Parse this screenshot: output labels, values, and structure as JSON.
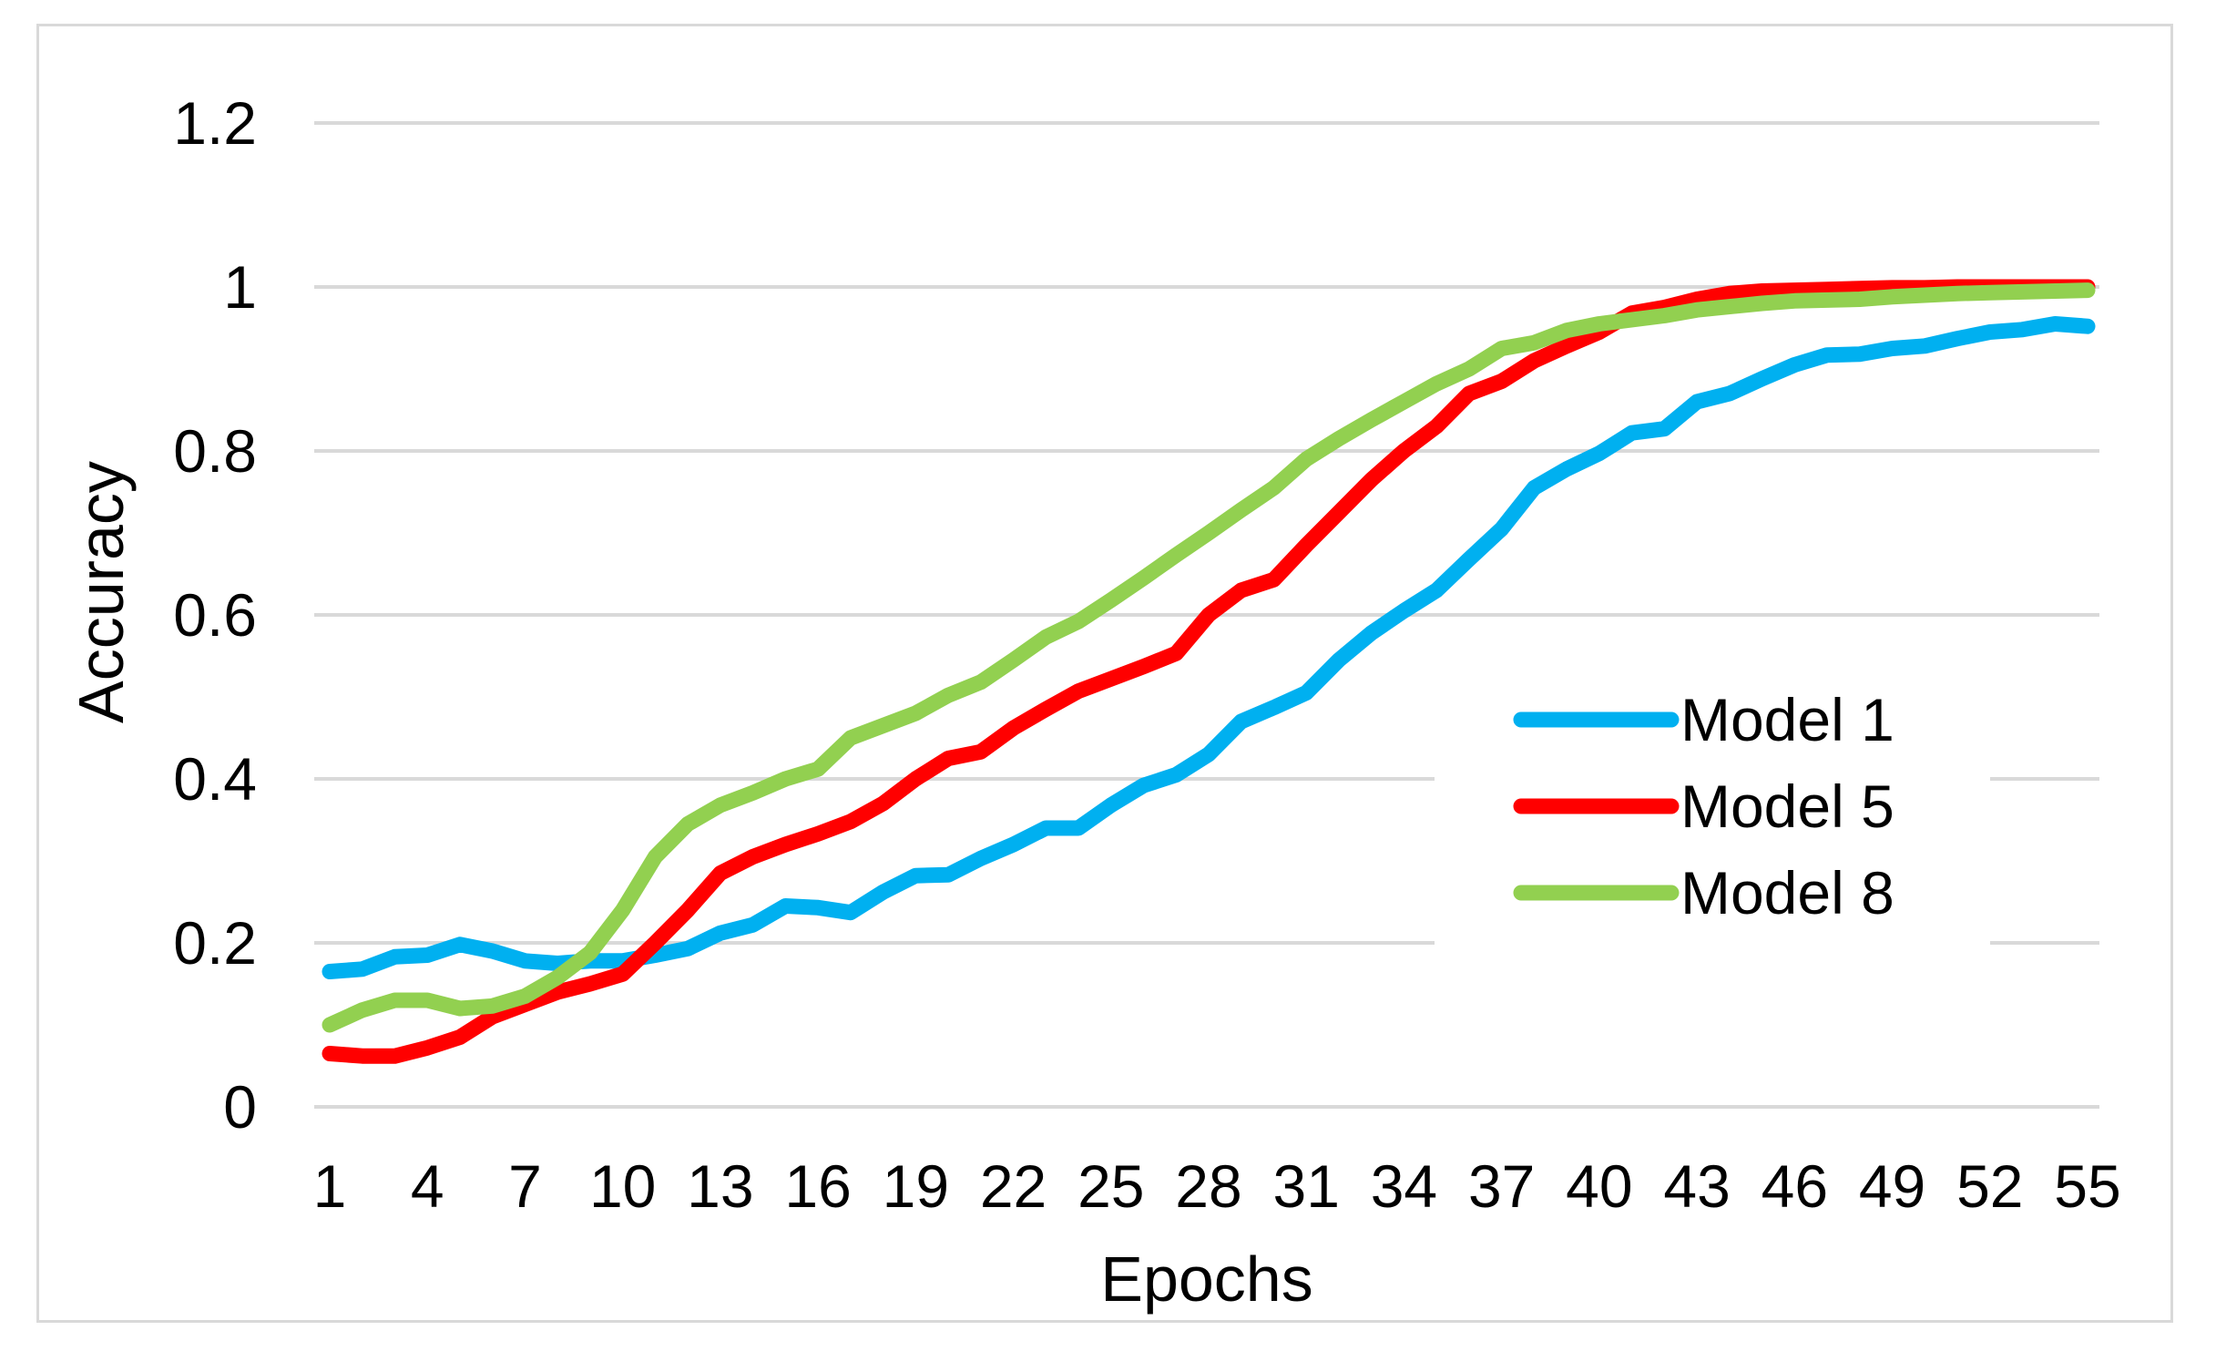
{
  "chart_data": {
    "type": "line",
    "title": "",
    "xlabel": "Epochs",
    "ylabel": "Accuracy",
    "ylim": [
      0,
      1.2
    ],
    "yticks": [
      "0",
      "0.2",
      "0.4",
      "0.6",
      "0.8",
      "1",
      "1.2"
    ],
    "ytick_values": [
      0,
      0.2,
      0.4,
      0.6,
      0.8,
      1.0,
      1.2
    ],
    "xticks": [
      "1",
      "4",
      "7",
      "10",
      "13",
      "16",
      "19",
      "22",
      "25",
      "28",
      "31",
      "34",
      "37",
      "40",
      "43",
      "46",
      "49",
      "52",
      "55"
    ],
    "xlim": [
      1,
      55
    ],
    "grid": "horizontal",
    "legend_position": "right-middle",
    "x": [
      1,
      2,
      3,
      4,
      5,
      6,
      7,
      8,
      9,
      10,
      11,
      12,
      13,
      14,
      15,
      16,
      17,
      18,
      19,
      20,
      21,
      22,
      23,
      24,
      25,
      26,
      27,
      28,
      29,
      30,
      31,
      32,
      33,
      34,
      35,
      36,
      37,
      38,
      39,
      40,
      41,
      42,
      43,
      44,
      45,
      46,
      47,
      48,
      49,
      50,
      51,
      52,
      53,
      54,
      55
    ],
    "series": [
      {
        "name": "Model 1",
        "color": "#00b0f0",
        "values": [
          0.165,
          0.168,
          0.183,
          0.185,
          0.198,
          0.19,
          0.178,
          0.175,
          0.178,
          0.178,
          0.185,
          0.193,
          0.212,
          0.222,
          0.245,
          0.243,
          0.237,
          0.262,
          0.282,
          0.283,
          0.303,
          0.32,
          0.34,
          0.34,
          0.368,
          0.392,
          0.405,
          0.43,
          0.47,
          0.487,
          0.505,
          0.545,
          0.578,
          0.605,
          0.63,
          0.668,
          0.705,
          0.755,
          0.778,
          0.797,
          0.822,
          0.827,
          0.86,
          0.87,
          0.888,
          0.905,
          0.917,
          0.918,
          0.925,
          0.928,
          0.937,
          0.945,
          0.948,
          0.955,
          0.952
        ]
      },
      {
        "name": "Model 5",
        "color": "#ff0000",
        "values": [
          0.065,
          0.062,
          0.062,
          0.072,
          0.085,
          0.11,
          0.125,
          0.14,
          0.15,
          0.162,
          0.2,
          0.24,
          0.285,
          0.305,
          0.32,
          0.333,
          0.348,
          0.37,
          0.4,
          0.425,
          0.433,
          0.462,
          0.485,
          0.507,
          0.522,
          0.537,
          0.553,
          0.6,
          0.63,
          0.643,
          0.685,
          0.725,
          0.765,
          0.8,
          0.83,
          0.87,
          0.885,
          0.91,
          0.928,
          0.945,
          0.968,
          0.975,
          0.985,
          0.992,
          0.995,
          0.996,
          0.997,
          0.998,
          0.999,
          0.999,
          1.0,
          1.0,
          1.0,
          1.0,
          1.0
        ]
      },
      {
        "name": "Model 8",
        "color": "#92d050",
        "values": [
          0.1,
          0.118,
          0.13,
          0.13,
          0.12,
          0.123,
          0.135,
          0.158,
          0.188,
          0.24,
          0.305,
          0.345,
          0.368,
          0.383,
          0.4,
          0.412,
          0.45,
          0.465,
          0.48,
          0.502,
          0.518,
          0.545,
          0.573,
          0.592,
          0.618,
          0.645,
          0.673,
          0.7,
          0.728,
          0.755,
          0.79,
          0.815,
          0.838,
          0.86,
          0.882,
          0.9,
          0.925,
          0.932,
          0.947,
          0.955,
          0.96,
          0.965,
          0.972,
          0.976,
          0.98,
          0.983,
          0.984,
          0.985,
          0.988,
          0.99,
          0.992,
          0.993,
          0.994,
          0.995,
          0.996
        ]
      }
    ]
  }
}
